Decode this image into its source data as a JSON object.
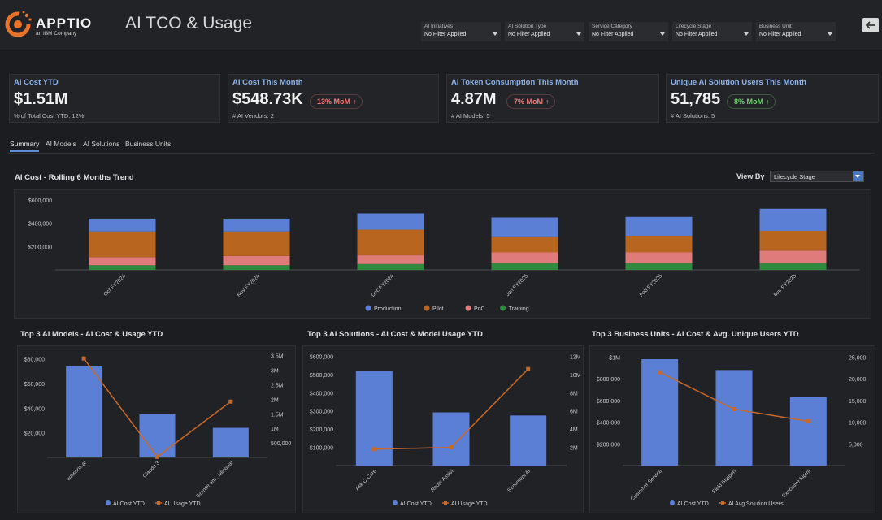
{
  "app": {
    "logo_text": "APPTIO",
    "logo_sub": "an IBM Company",
    "title": "AI TCO & Usage"
  },
  "filters": [
    {
      "label": "AI Initiatives",
      "value": "No Filter Applied"
    },
    {
      "label": "AI Solution Type",
      "value": "No Filter Applied"
    },
    {
      "label": "Service Category",
      "value": "No Filter Applied"
    },
    {
      "label": "Lifecycle Stage",
      "value": "No Filter Applied"
    },
    {
      "label": "Business Unit",
      "value": "No Filter Applied"
    }
  ],
  "header_icons": {
    "back": "back-arrow-icon"
  },
  "kpis": [
    {
      "title": "AI Cost YTD",
      "value": "$1.51M",
      "sub": "% of Total Cost YTD: 12%"
    },
    {
      "title": "AI Cost This Month",
      "value": "$548.73K",
      "badge": "13% MoM",
      "badge_color": "#f27c7c",
      "sub": "# AI Vendors: 2"
    },
    {
      "title": "AI Token Consumption This Month",
      "value": "4.87M",
      "badge": "7% MoM",
      "badge_color": "#f27c7c",
      "sub": "# AI Models: 5"
    },
    {
      "title": "Unique AI Solution Users This Month",
      "value": "51,785",
      "badge": "8% MoM",
      "badge_color": "#6fcf6f",
      "sub": "# AI Solutions: 5"
    }
  ],
  "tabs": [
    "Summary",
    "AI Models",
    "AI Solutions",
    "Business Units"
  ],
  "active_tab": "Summary",
  "trend": {
    "title": "AI Cost - Rolling 6 Months Trend",
    "view_by_label": "View By",
    "view_by_value": "Lifecycle Stage"
  },
  "chart_data": [
    {
      "type": "bar",
      "stacked": true,
      "title": "AI Cost - Rolling 6 Months Trend",
      "categories": [
        "Oct FY2024",
        "Nov FY2024",
        "Dec FY2024",
        "Jan FY2025",
        "Feb FY2025",
        "Mar FY2025"
      ],
      "series": [
        {
          "name": "Training",
          "color": "#2e8b3e",
          "values": [
            40000,
            40000,
            50000,
            55000,
            55000,
            55000
          ]
        },
        {
          "name": "PoC",
          "color": "#e07b7b",
          "values": [
            70000,
            80000,
            75000,
            95000,
            95000,
            110000
          ]
        },
        {
          "name": "Pilot",
          "color": "#b8661f",
          "values": [
            220000,
            210000,
            220000,
            130000,
            140000,
            170000
          ]
        },
        {
          "name": "Production",
          "color": "#5b7fd4",
          "values": [
            110000,
            110000,
            140000,
            170000,
            165000,
            190000
          ]
        }
      ],
      "legend_order": [
        "Production",
        "Pilot",
        "PoC",
        "Training"
      ],
      "y_ticks": [
        200000,
        400000,
        600000
      ],
      "y_tick_labels": [
        "$200,000",
        "$400,000",
        "$600,000"
      ],
      "ylim": [
        0,
        600000
      ],
      "legend": "bottom"
    },
    {
      "type": "bar",
      "title": "Top 3 AI Models - AI Cost & Usage YTD",
      "categories": [
        "watsonx.ai",
        "Claude 3",
        "Granite em...ltilingual"
      ],
      "series": [
        {
          "name": "AI Cost YTD",
          "type": "bar",
          "axis": "left",
          "color": "#5b7fd4",
          "values": [
            74000,
            35000,
            24000
          ]
        },
        {
          "name": "AI Usage YTD",
          "type": "line",
          "axis": "right",
          "color": "#c8692a",
          "values": [
            3400000,
            20000,
            1920000
          ]
        }
      ],
      "y_left_ticks": [
        20000,
        40000,
        60000,
        80000
      ],
      "y_left_labels": [
        "$20,000",
        "$40,000",
        "$60,000",
        "$80,000"
      ],
      "y_left_lim": [
        0,
        85000
      ],
      "y_right_ticks": [
        500000,
        1000000,
        1500000,
        2000000,
        2500000,
        3000000,
        3500000
      ],
      "y_right_labels": [
        "500,000",
        "1M",
        "1.5M",
        "2M",
        "2.5M",
        "3M",
        "3.5M"
      ],
      "y_right_lim": [
        0,
        3600000
      ],
      "legend": "bottom"
    },
    {
      "type": "bar",
      "title": "Top 3 AI Solutions - AI Cost & Model Usage YTD",
      "categories": [
        "Ask C-Care",
        "Route Assist",
        "Sentiment AI"
      ],
      "series": [
        {
          "name": "AI Cost YTD",
          "type": "bar",
          "axis": "left",
          "color": "#5b7fd4",
          "values": [
            520000,
            292000,
            275000
          ]
        },
        {
          "name": "AI Usage YTD",
          "type": "line",
          "axis": "right",
          "color": "#c8692a",
          "values": [
            1800000,
            2000000,
            10600000
          ]
        }
      ],
      "y_left_ticks": [
        100000,
        200000,
        300000,
        400000,
        500000,
        600000
      ],
      "y_left_labels": [
        "$100,000",
        "$200,000",
        "$300,000",
        "$400,000",
        "$500,000",
        "$600,000"
      ],
      "y_left_lim": [
        0,
        620000
      ],
      "y_right_ticks": [
        2000000,
        4000000,
        6000000,
        8000000,
        10000000,
        12000000
      ],
      "y_right_labels": [
        "2M",
        "4M",
        "6M",
        "8M",
        "10M",
        "12M"
      ],
      "y_right_lim": [
        0,
        12400000
      ],
      "legend": "bottom"
    },
    {
      "type": "bar",
      "title": "Top 3 Business Units - AI Cost & Avg. Unique Users YTD",
      "categories": [
        "Customer Service",
        "Field Support",
        "Executive Mgmt"
      ],
      "series": [
        {
          "name": "AI Cost YTD",
          "type": "bar",
          "axis": "left",
          "color": "#5b7fd4",
          "values": [
            980000,
            880000,
            630000
          ]
        },
        {
          "name": "AI Avg Solution Users",
          "type": "line",
          "axis": "right",
          "color": "#c8692a",
          "values": [
            21500,
            13000,
            10200
          ]
        }
      ],
      "y_left_ticks": [
        200000,
        400000,
        600000,
        800000,
        1000000
      ],
      "y_left_labels": [
        "$200,000",
        "$400,000",
        "$600,000",
        "$800,000",
        "$1M"
      ],
      "y_left_lim": [
        0,
        1040000
      ],
      "y_right_ticks": [
        5000,
        10000,
        15000,
        20000,
        25000
      ],
      "y_right_labels": [
        "5,000",
        "10,000",
        "15,000",
        "20,000",
        "25,000"
      ],
      "y_right_lim": [
        0,
        26000
      ],
      "legend": "bottom"
    }
  ]
}
